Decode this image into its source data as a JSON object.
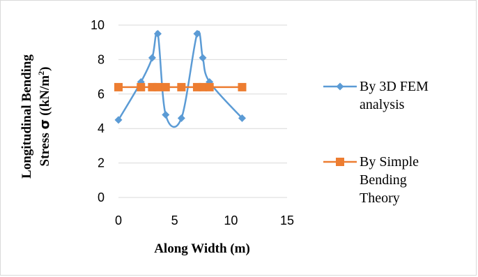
{
  "chart_data": {
    "type": "scatter",
    "title": "",
    "xlabel": "Along Width (m)",
    "ylabel_line1": "Longitudinal Bending",
    "ylabel_line2_prefix": "Stress ",
    "ylabel_line2_sigma": "σ",
    "ylabel_line2_unit": " ((kN/m",
    "ylabel_line2_sup": "2",
    "ylabel_line2_end": ")",
    "xlim": [
      0,
      15
    ],
    "ylim": [
      0,
      10
    ],
    "x_ticks": [
      "0",
      "5",
      "10",
      "15"
    ],
    "y_ticks": [
      "0",
      "2",
      "4",
      "6",
      "8",
      "10"
    ],
    "grid": "horizontal",
    "legend_position": "right",
    "series": [
      {
        "name_lines": [
          "By 3D FEM",
          "analysis"
        ],
        "color": "#5B9BD5",
        "marker": "diamond",
        "smooth": true,
        "x": [
          0,
          2,
          3,
          3.5,
          4.2,
          5.6,
          7,
          7.5,
          8.1,
          11
        ],
        "y": [
          4.5,
          6.7,
          8.1,
          9.5,
          4.8,
          4.6,
          9.5,
          8.1,
          6.7,
          4.6
        ]
      },
      {
        "name_lines": [
          "By Simple",
          "Bending",
          "Theory"
        ],
        "color": "#ED7D31",
        "marker": "square",
        "smooth": false,
        "x": [
          0,
          2,
          3,
          3.5,
          4.2,
          5.6,
          7,
          7.5,
          8.1,
          11
        ],
        "y": [
          6.4,
          6.4,
          6.4,
          6.4,
          6.4,
          6.4,
          6.4,
          6.4,
          6.4,
          6.4
        ]
      }
    ]
  }
}
